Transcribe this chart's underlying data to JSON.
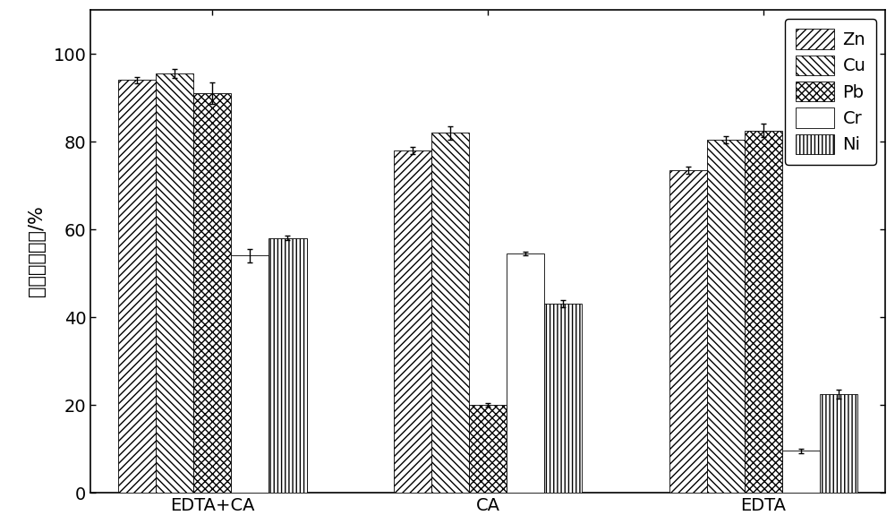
{
  "groups": [
    "EDTA+CA",
    "CA",
    "EDTA"
  ],
  "metals": [
    "Zn",
    "Cu",
    "Pb",
    "Cr",
    "Ni"
  ],
  "values": {
    "EDTA+CA": [
      94.0,
      95.5,
      91.0,
      54.0,
      58.0
    ],
    "CA": [
      78.0,
      82.0,
      20.0,
      54.5,
      43.0
    ],
    "EDTA": [
      73.5,
      80.5,
      82.5,
      9.5,
      22.5
    ]
  },
  "errors": {
    "EDTA+CA": [
      0.8,
      1.0,
      2.5,
      1.5,
      0.5
    ],
    "CA": [
      0.8,
      1.5,
      0.5,
      0.5,
      0.8
    ],
    "EDTA": [
      0.8,
      0.8,
      1.5,
      0.5,
      1.0
    ]
  },
  "ylabel": "重金属去除率/%",
  "ylim": [
    0,
    110
  ],
  "yticks": [
    0,
    20,
    40,
    60,
    80,
    100
  ],
  "bar_width": 0.13,
  "legend_fontsize": 14,
  "tick_fontsize": 14,
  "ylabel_fontsize": 15,
  "background_color": "#ffffff"
}
